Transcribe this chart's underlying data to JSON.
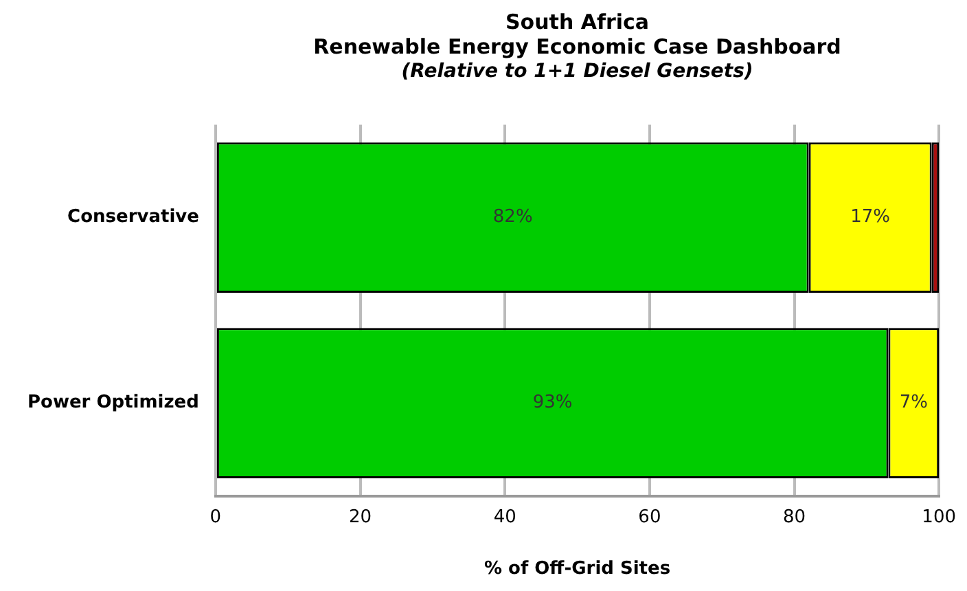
{
  "chart_data": {
    "type": "bar",
    "orientation": "horizontal",
    "stacked": true,
    "title": "South Africa\nRenewable Energy Economic Case Dashboard",
    "subtitle": "(Relative to 1+1 Diesel Gensets)",
    "xlabel": "% of Off-Grid Sites",
    "categories": [
      "Conservative",
      "Power Optimized"
    ],
    "series": [
      {
        "color": "#00cc00",
        "values": [
          82,
          93
        ],
        "value_labels": [
          "82%",
          "93%"
        ]
      },
      {
        "color": "#ffff00",
        "values": [
          17,
          7
        ],
        "value_labels": [
          "17%",
          "7%"
        ]
      },
      {
        "color": "#aa1111",
        "values": [
          1,
          null
        ]
      }
    ],
    "xlim": [
      0,
      100
    ],
    "xticks": [
      0,
      20,
      40,
      60,
      80,
      100
    ],
    "grid": "x",
    "legend": false
  }
}
